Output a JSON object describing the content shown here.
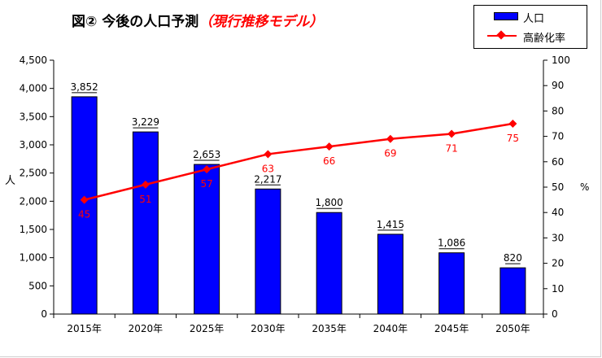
{
  "title": "図② 今後の人口予測",
  "subtitle": "（現行推移モデル）",
  "chart_data": {
    "type": "bar+line",
    "categories": [
      "2015年",
      "2020年",
      "2025年",
      "2030年",
      "2035年",
      "2040年",
      "2045年",
      "2050年"
    ],
    "series": [
      {
        "name": "人口",
        "type": "bar",
        "axis": "left",
        "color": "#0000ff",
        "values": [
          3852,
          3229,
          2653,
          2217,
          1800,
          1415,
          1086,
          820
        ],
        "labels": [
          "3,852",
          "3,229",
          "2,653",
          "2,217",
          "1,800",
          "1,415",
          "1,086",
          "820"
        ]
      },
      {
        "name": "高齢化率",
        "type": "line",
        "axis": "right",
        "color": "#ff0000",
        "values": [
          45,
          51,
          57,
          63,
          66,
          69,
          71,
          75
        ],
        "labels": [
          "45",
          "51",
          "57",
          "63",
          "66",
          "69",
          "71",
          "75"
        ]
      }
    ],
    "y_left": {
      "label": "人",
      "range": [
        0,
        4500
      ],
      "ticks": [
        0,
        500,
        1000,
        1500,
        2000,
        2500,
        3000,
        3500,
        4000,
        4500
      ],
      "tick_labels": [
        "0",
        "500",
        "1,000",
        "1,500",
        "2,000",
        "2,500",
        "3,000",
        "3,500",
        "4,000",
        "4,500"
      ]
    },
    "y_right": {
      "label": "%",
      "range": [
        0,
        100
      ],
      "ticks": [
        0,
        10,
        20,
        30,
        40,
        50,
        60,
        70,
        80,
        90,
        100
      ],
      "tick_labels": [
        "0",
        "10",
        "20",
        "30",
        "40",
        "50",
        "60",
        "70",
        "80",
        "90",
        "100"
      ]
    },
    "grid": false,
    "legend_position": "top-right"
  }
}
